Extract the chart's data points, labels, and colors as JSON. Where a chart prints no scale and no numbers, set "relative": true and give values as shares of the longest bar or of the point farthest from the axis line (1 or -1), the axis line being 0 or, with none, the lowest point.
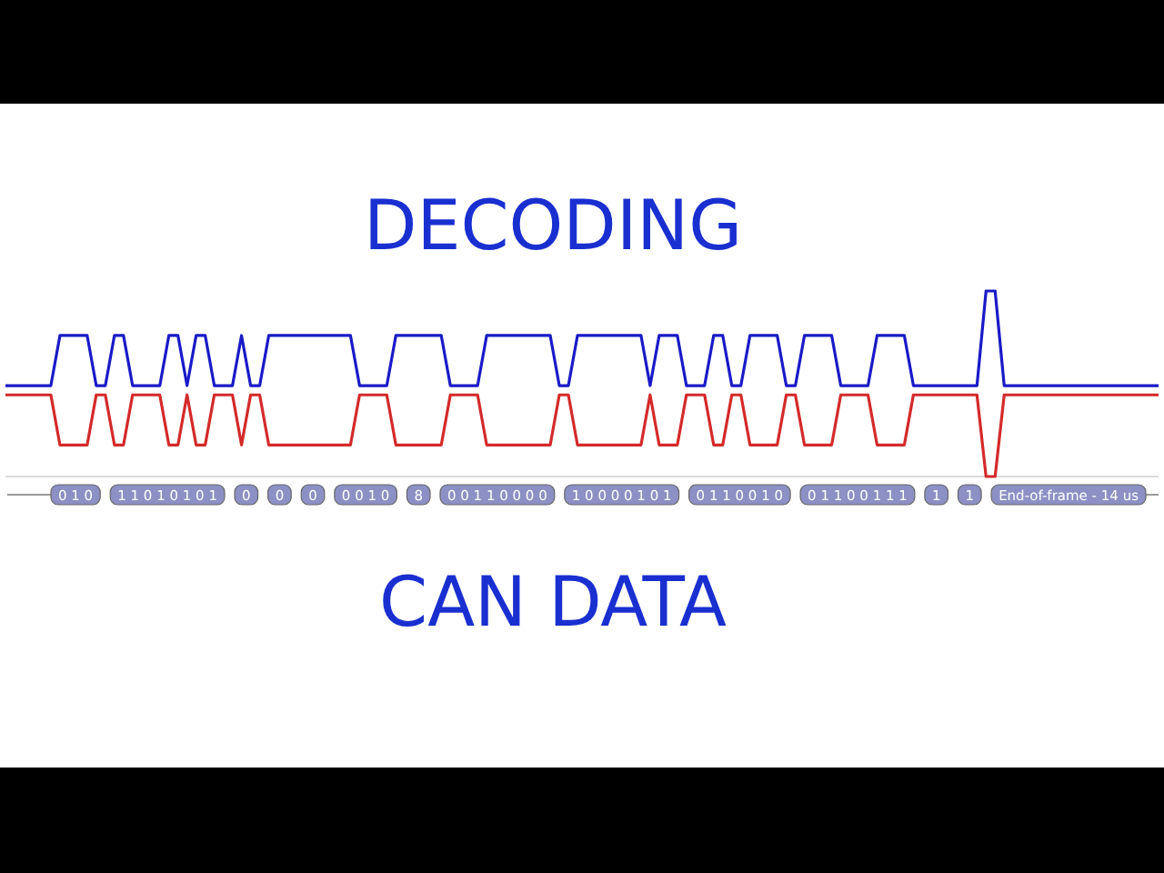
{
  "chart_data": {
    "type": "line",
    "title": "DECODING",
    "relative": true,
    "tick_labels": false,
    "categories": [
      null,
      null,
      null,
      null,
      null,
      null,
      null,
      null,
      null,
      null,
      null,
      null,
      null,
      null,
      null,
      null,
      null,
      null,
      null,
      null,
      null,
      null,
      null,
      null,
      null,
      null,
      null,
      null,
      null,
      null,
      null,
      null,
      null,
      null,
      null,
      null,
      null,
      null,
      null,
      null,
      null,
      null,
      null,
      null,
      null,
      null,
      null,
      null,
      null,
      null,
      null,
      null,
      null,
      null,
      null,
      null,
      null,
      null,
      null,
      null,
      null,
      null,
      null,
      null,
      null,
      null,
      null,
      null,
      null,
      null,
      null,
      null,
      null,
      null,
      null,
      null,
      null,
      null,
      null,
      null,
      null,
      null,
      null,
      null,
      null,
      null,
      null,
      null,
      null,
      null,
      null,
      null,
      null,
      null,
      null,
      null,
      null,
      null,
      null,
      null,
      null,
      null,
      null,
      null,
      null,
      null,
      null,
      null,
      null,
      null,
      null,
      null,
      null,
      null,
      null,
      null,
      null,
      null,
      null,
      null,
      null,
      null,
      null,
      null,
      null,
      null,
      null,
      null
    ],
    "series": [
      {
        "color": "#1a1ac8",
        "values": [
          0.49,
          0.49,
          0.49,
          0.49,
          0.49,
          0.49,
          0.76,
          0.76,
          0.76,
          0.76,
          0.49,
          0.49,
          0.76,
          0.76,
          0.49,
          0.49,
          0.49,
          0.49,
          0.76,
          0.76,
          0.49,
          0.76,
          0.76,
          0.49,
          0.49,
          0.49,
          0.76,
          0.49,
          0.49,
          0.76,
          0.76,
          0.76,
          0.76,
          0.76,
          0.76,
          0.76,
          0.76,
          0.76,
          0.76,
          0.49,
          0.49,
          0.49,
          0.49,
          0.76,
          0.76,
          0.76,
          0.76,
          0.76,
          0.76,
          0.49,
          0.49,
          0.49,
          0.49,
          0.76,
          0.76,
          0.76,
          0.76,
          0.76,
          0.76,
          0.76,
          0.76,
          0.49,
          0.49,
          0.76,
          0.76,
          0.76,
          0.76,
          0.76,
          0.76,
          0.76,
          0.76,
          0.49,
          0.76,
          0.76,
          0.76,
          0.49,
          0.49,
          0.49,
          0.76,
          0.76,
          0.49,
          0.49,
          0.76,
          0.76,
          0.76,
          0.76,
          0.49,
          0.49,
          0.76,
          0.76,
          0.76,
          0.76,
          0.49,
          0.49,
          0.49,
          0.49,
          0.76,
          0.76,
          0.76,
          0.76,
          0.49,
          0.49,
          0.49,
          0.49,
          0.49,
          0.49,
          0.49,
          0.49,
          1,
          1,
          0.49,
          0.49,
          0.49,
          0.49,
          0.49,
          0.49,
          0.49,
          0.49,
          0.49,
          0.49,
          0.49,
          0.49,
          0.49,
          0.49,
          0.49,
          0.49,
          0.49,
          0.49
        ]
      },
      {
        "color": "#d42a2a",
        "values": [
          0.44,
          0.44,
          0.44,
          0.44,
          0.44,
          0.44,
          0.17,
          0.17,
          0.17,
          0.17,
          0.44,
          0.44,
          0.17,
          0.17,
          0.44,
          0.44,
          0.44,
          0.44,
          0.17,
          0.17,
          0.44,
          0.17,
          0.17,
          0.44,
          0.44,
          0.44,
          0.17,
          0.44,
          0.44,
          0.17,
          0.17,
          0.17,
          0.17,
          0.17,
          0.17,
          0.17,
          0.17,
          0.17,
          0.17,
          0.44,
          0.44,
          0.44,
          0.44,
          0.17,
          0.17,
          0.17,
          0.17,
          0.17,
          0.17,
          0.44,
          0.44,
          0.44,
          0.44,
          0.17,
          0.17,
          0.17,
          0.17,
          0.17,
          0.17,
          0.17,
          0.17,
          0.44,
          0.44,
          0.17,
          0.17,
          0.17,
          0.17,
          0.17,
          0.17,
          0.17,
          0.17,
          0.44,
          0.17,
          0.17,
          0.17,
          0.44,
          0.44,
          0.44,
          0.17,
          0.17,
          0.44,
          0.44,
          0.17,
          0.17,
          0.17,
          0.17,
          0.44,
          0.44,
          0.17,
          0.17,
          0.17,
          0.17,
          0.44,
          0.44,
          0.44,
          0.44,
          0.17,
          0.17,
          0.17,
          0.17,
          0.44,
          0.44,
          0.44,
          0.44,
          0.44,
          0.44,
          0.44,
          0.44,
          0,
          0,
          0.44,
          0.44,
          0.44,
          0.44,
          0.44,
          0.44,
          0.44,
          0.44,
          0.44,
          0.44,
          0.44,
          0.44,
          0.44,
          0.44,
          0.44,
          0.44,
          0.44,
          0.44
        ]
      }
    ],
    "annotations": [
      "0 1 0",
      "1 1 0 1 0 1 0 1",
      "0",
      "0",
      "0",
      "0 0 1 0",
      "8",
      "0 0 1 1 0 0 0 0",
      "1 0 0 0 0 1 0 1",
      "0 1 1 0 0 1 0",
      "0 1 1 0 0 1 1 1",
      "1",
      "1",
      "End-of-frame - 14 us",
      "CAN DATA"
    ]
  }
}
